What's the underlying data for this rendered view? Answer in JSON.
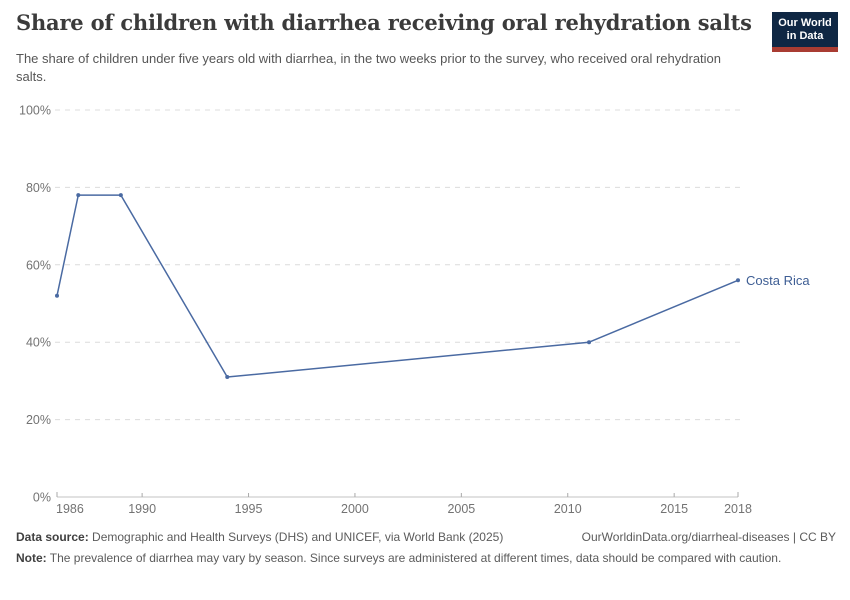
{
  "header": {
    "logo": {
      "line1": "Our World",
      "line2": "in Data"
    }
  },
  "colors": {
    "grid": "#dcdcdc",
    "axis": "#c3c3c3",
    "tick": "#a9a9a9",
    "tick_label": "#737373",
    "logo_navy": "#0f2744",
    "logo_red": "#a93c32",
    "line_blue": "#4a6aa2"
  },
  "chart_data": {
    "type": "line",
    "title": "Share of children with diarrhea receiving oral rehydration salts",
    "subtitle": "The share of children under five years old with diarrhea, in the two weeks prior to the survey, who received oral rehydration salts.",
    "xlabel": "",
    "ylabel": "",
    "xlim": [
      1986,
      2018
    ],
    "ylim": [
      0,
      100
    ],
    "x_ticks": [
      1986,
      1990,
      1995,
      2000,
      2005,
      2010,
      2015,
      2018
    ],
    "y_ticks": [
      0,
      20,
      40,
      60,
      80,
      100
    ],
    "y_suffix": "%",
    "grid": "horizontal-dashed",
    "legend": "inline-end-label",
    "series": [
      {
        "name": "Costa Rica",
        "color": "#4a6aa2",
        "label_color": "#3e5e94",
        "points": [
          {
            "year": 1986,
            "value": 52
          },
          {
            "year": 1987,
            "value": 78
          },
          {
            "year": 1989,
            "value": 78
          },
          {
            "year": 1994,
            "value": 31
          },
          {
            "year": 2011,
            "value": 40
          },
          {
            "year": 2018,
            "value": 56
          }
        ]
      }
    ]
  },
  "footer": {
    "datasource_label": "Data source:",
    "datasource_text": "Demographic and Health Surveys (DHS) and UNICEF, via World Bank (2025)",
    "link_text": "OurWorldinData.org/diarrheal-diseases | CC BY",
    "note_label": "Note:",
    "note_text": "The prevalence of diarrhea may vary by season. Since surveys are administered at different times, data should be compared with caution."
  }
}
